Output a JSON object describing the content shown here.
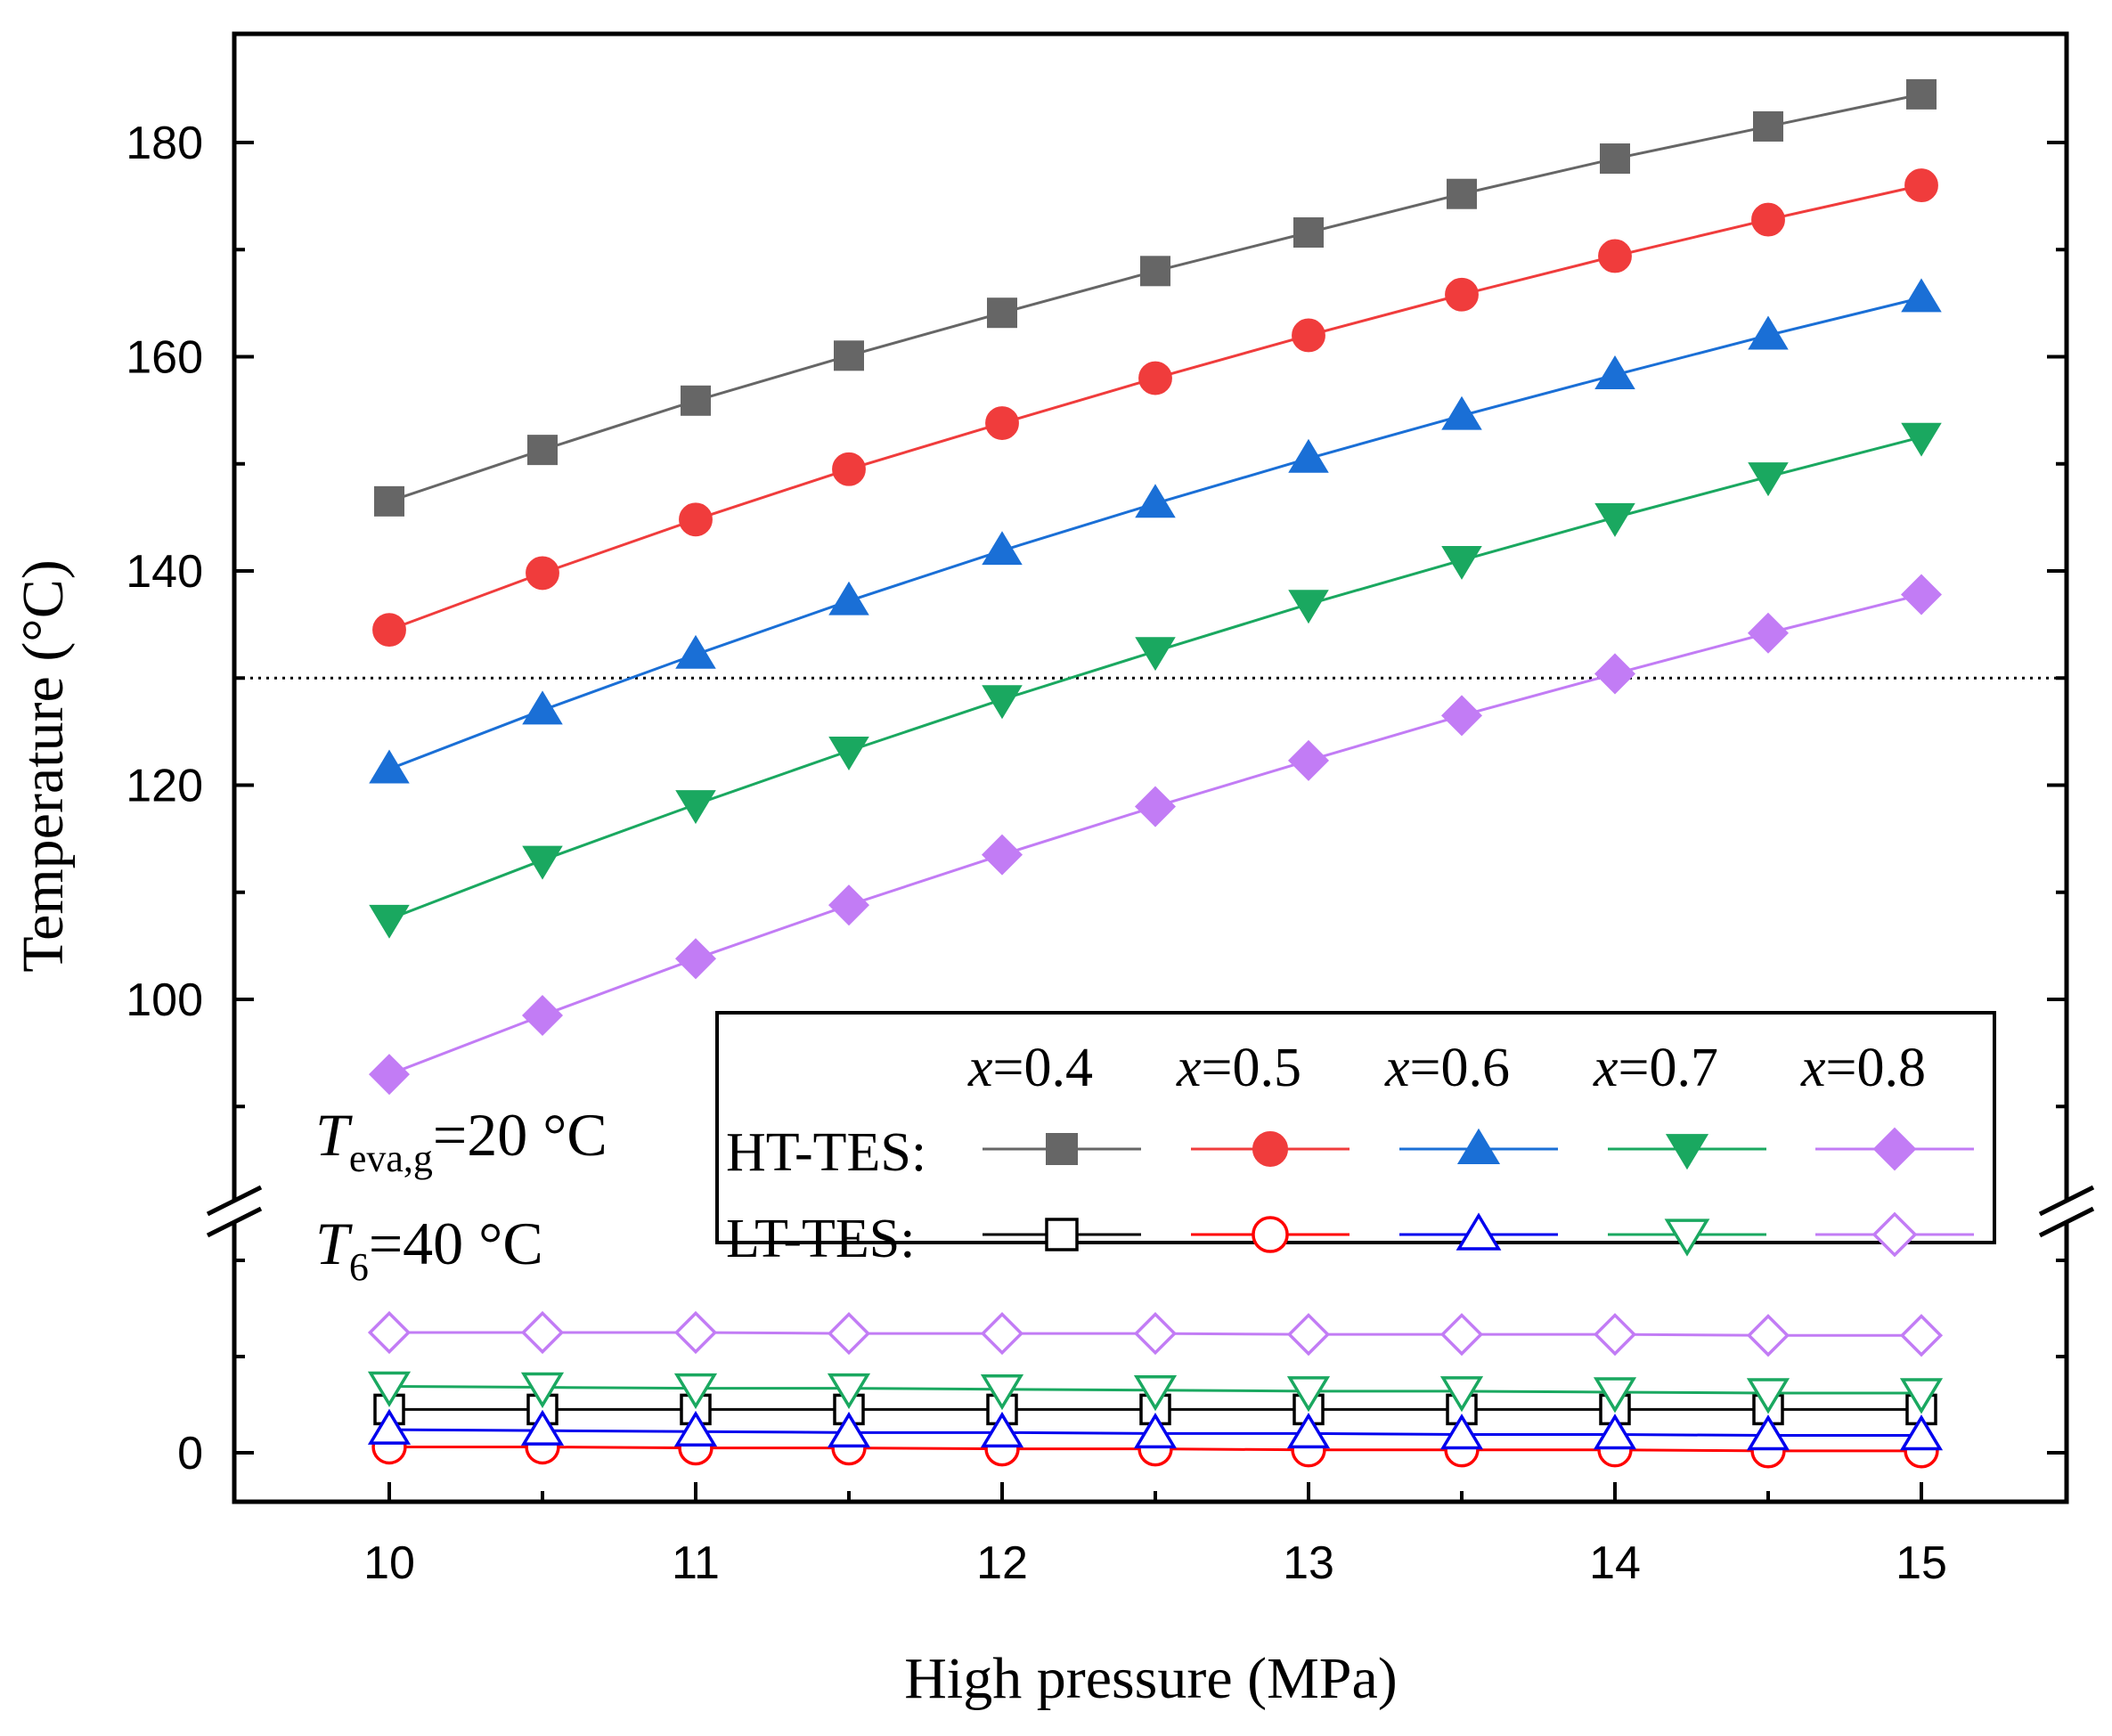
{
  "chart_data": {
    "type": "line",
    "xlabel": "High pressure (MPa)",
    "ylabel": "Temperature (°C)",
    "x": [
      10,
      10.5,
      11,
      11.5,
      12,
      12.5,
      13,
      13.5,
      14,
      14.5,
      15
    ],
    "x_ticks": [
      "10",
      "11",
      "12",
      "13",
      "14",
      "15"
    ],
    "xlim": [
      9.5,
      15.5
    ],
    "y_upper": {
      "range": [
        80,
        190
      ],
      "ticks": [
        "100",
        "120",
        "140",
        "160",
        "180"
      ]
    },
    "y_lower": {
      "range": [
        -5,
        25
      ],
      "ticks": [
        "0"
      ]
    },
    "reference_line_y": 130,
    "axis_break": true,
    "series": [
      {
        "name": "HT-TES x=0.4",
        "group": "HT-TES",
        "color": "#666666",
        "marker": "square",
        "filled": true,
        "values": [
          146.5,
          151.3,
          155.9,
          160.1,
          164.1,
          168.0,
          171.6,
          175.2,
          178.5,
          181.5,
          184.5
        ]
      },
      {
        "name": "HT-TES x=0.5",
        "group": "HT-TES",
        "color": "#f03c3c",
        "marker": "circle",
        "filled": true,
        "values": [
          134.5,
          139.8,
          144.8,
          149.5,
          153.8,
          158.0,
          162.0,
          165.8,
          169.4,
          172.8,
          176.0
        ]
      },
      {
        "name": "HT-TES x=0.6",
        "group": "HT-TES",
        "color": "#1a6fd6",
        "marker": "triangle-up",
        "filled": true,
        "values": [
          121.5,
          127.0,
          132.2,
          137.2,
          141.9,
          146.3,
          150.5,
          154.5,
          158.3,
          162.0,
          165.5
        ]
      },
      {
        "name": "HT-TES x=0.7",
        "group": "HT-TES",
        "color": "#1aa860",
        "marker": "triangle-down",
        "filled": true,
        "values": [
          107.5,
          113.0,
          118.2,
          123.2,
          128.0,
          132.5,
          136.9,
          141.0,
          145.0,
          148.8,
          152.5
        ]
      },
      {
        "name": "HT-TES x=0.8",
        "group": "HT-TES",
        "color": "#c27cf5",
        "marker": "diamond",
        "filled": true,
        "values": [
          93.0,
          98.5,
          103.8,
          108.8,
          113.5,
          118.0,
          122.3,
          126.5,
          130.4,
          134.2,
          137.8
        ]
      },
      {
        "name": "LT-TES x=0.4",
        "group": "LT-TES",
        "color": "#000000",
        "marker": "square",
        "filled": false,
        "values": [
          4.5,
          4.5,
          4.5,
          4.5,
          4.5,
          4.5,
          4.5,
          4.5,
          4.5,
          4.5,
          4.5
        ]
      },
      {
        "name": "LT-TES x=0.5",
        "group": "LT-TES",
        "color": "#ff0000",
        "marker": "circle",
        "filled": false,
        "values": [
          0.6,
          0.6,
          0.5,
          0.5,
          0.4,
          0.4,
          0.3,
          0.3,
          0.3,
          0.2,
          0.2
        ]
      },
      {
        "name": "LT-TES x=0.6",
        "group": "LT-TES",
        "color": "#0000ee",
        "marker": "triangle-up",
        "filled": false,
        "values": [
          2.4,
          2.3,
          2.2,
          2.1,
          2.1,
          2.0,
          2.0,
          1.9,
          1.9,
          1.8,
          1.8
        ]
      },
      {
        "name": "LT-TES x=0.7",
        "group": "LT-TES",
        "color": "#1aa860",
        "marker": "triangle-down",
        "filled": false,
        "values": [
          6.9,
          6.8,
          6.7,
          6.7,
          6.6,
          6.5,
          6.4,
          6.4,
          6.3,
          6.2,
          6.2
        ]
      },
      {
        "name": "LT-TES x=0.8",
        "group": "LT-TES",
        "color": "#c27cf5",
        "marker": "diamond",
        "filled": false,
        "values": [
          12.5,
          12.5,
          12.5,
          12.4,
          12.4,
          12.4,
          12.3,
          12.3,
          12.3,
          12.2,
          12.2
        ]
      }
    ],
    "legend": {
      "placement": "bottom-right",
      "columns": [
        "x=0.4",
        "x=0.5",
        "x=0.6",
        "x=0.7",
        "x=0.8"
      ],
      "rows": [
        "HT-TES:",
        "LT-TES:"
      ]
    },
    "annotations": {
      "teva": {
        "symbol": "T",
        "subscript": "eva,g",
        "rest": "=20 °C"
      },
      "t6": {
        "symbol": "T",
        "subscript": "6",
        "rest": "=40 °C"
      }
    }
  }
}
